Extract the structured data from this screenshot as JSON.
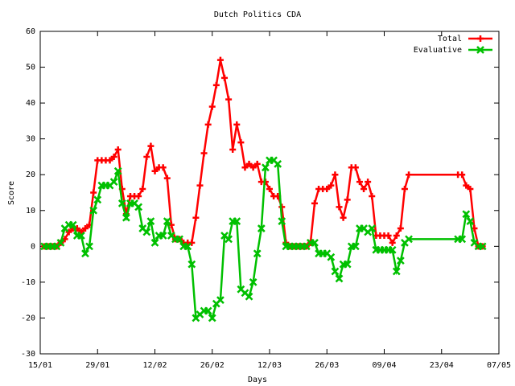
{
  "chart_data": {
    "type": "line",
    "title": "Dutch Politics CDA",
    "xlabel": "Days",
    "ylabel": "Score",
    "x": [
      "16/01",
      "17/01",
      "18/01",
      "19/01",
      "20/01",
      "21/01",
      "22/01",
      "23/01",
      "24/01",
      "25/01",
      "26/01",
      "27/01",
      "28/01",
      "29/01",
      "30/01",
      "31/01",
      "01/02",
      "02/02",
      "03/02",
      "04/02",
      "05/02",
      "06/02",
      "07/02",
      "08/02",
      "09/02",
      "10/02",
      "11/02",
      "12/02",
      "13/02",
      "14/02",
      "15/02",
      "16/02",
      "17/02",
      "18/02",
      "19/02",
      "20/02",
      "21/02",
      "22/02",
      "23/02",
      "24/02",
      "25/02",
      "26/02",
      "27/02",
      "28/02",
      "01/03",
      "02/03",
      "03/03",
      "04/03",
      "05/03",
      "06/03",
      "07/03",
      "08/03",
      "09/03",
      "10/03",
      "11/03",
      "12/03",
      "13/03",
      "14/03",
      "15/03",
      "16/03",
      "17/03",
      "18/03",
      "19/03",
      "20/03",
      "21/03",
      "22/03",
      "23/03",
      "24/03",
      "25/03",
      "26/03",
      "27/03",
      "28/03",
      "29/03",
      "30/03",
      "31/03",
      "01/04",
      "02/04",
      "03/04",
      "04/04",
      "05/04",
      "06/04",
      "07/04",
      "08/04",
      "09/04",
      "10/04",
      "11/04",
      "12/04",
      "13/04",
      "14/04",
      "15/04",
      "27/04",
      "28/04",
      "29/04",
      "30/04",
      "01/05",
      "02/05",
      "03/05"
    ],
    "series": [
      {
        "name": "Total",
        "color": "#ff0000",
        "marker": "plus",
        "values": [
          0,
          0,
          0,
          0,
          1,
          2,
          4,
          5,
          5,
          4,
          5,
          6,
          15,
          24,
          24,
          24,
          24,
          25,
          27,
          16,
          9,
          14,
          14,
          14,
          16,
          25,
          28,
          21,
          22,
          22,
          19,
          6,
          2,
          2,
          1,
          1,
          1,
          8,
          17,
          26,
          34,
          39,
          45,
          52,
          47,
          41,
          27,
          34,
          29,
          22,
          23,
          22,
          23,
          18,
          18,
          16,
          14,
          14,
          11,
          1,
          0,
          0,
          0,
          0,
          0,
          1,
          12,
          16,
          16,
          16,
          17,
          20,
          11,
          8,
          13,
          22,
          22,
          18,
          16,
          18,
          14,
          3,
          3,
          3,
          3,
          1,
          3,
          5,
          16,
          20,
          20,
          20,
          17,
          16,
          5,
          0,
          0
        ]
      },
      {
        "name": "Evaluative",
        "color": "#00c000",
        "marker": "cross",
        "values": [
          0,
          0,
          0,
          0,
          1,
          5,
          6,
          6,
          3,
          3,
          -2,
          0,
          10,
          13,
          17,
          17,
          17,
          18,
          21,
          12,
          8,
          12,
          12,
          11,
          5,
          4,
          7,
          1,
          3,
          3,
          7,
          3,
          2,
          2,
          0,
          0,
          -5,
          -20,
          -19,
          -18,
          -18,
          -20,
          -16,
          -15,
          3,
          2,
          7,
          7,
          -12,
          -13,
          -14,
          -10,
          -2,
          5,
          22,
          24,
          24,
          23,
          7,
          0,
          0,
          0,
          0,
          0,
          0,
          1,
          1,
          -2,
          -2,
          -2,
          -3,
          -7,
          -9,
          -5,
          -5,
          0,
          0,
          5,
          5,
          4,
          5,
          -1,
          -1,
          -1,
          -1,
          -1,
          -7,
          -4,
          1,
          2,
          2,
          2,
          9,
          7,
          1,
          0,
          0
        ]
      }
    ],
    "xlim": [
      "15/01",
      "07/05"
    ],
    "xticks": [
      "15/01",
      "29/01",
      "12/02",
      "26/02",
      "12/03",
      "26/03",
      "09/04",
      "23/04",
      "07/05"
    ],
    "ylim": [
      -30,
      60
    ],
    "yticks": [
      -30,
      -20,
      -10,
      0,
      10,
      20,
      30,
      40,
      50,
      60
    ],
    "legend": "top-right"
  }
}
